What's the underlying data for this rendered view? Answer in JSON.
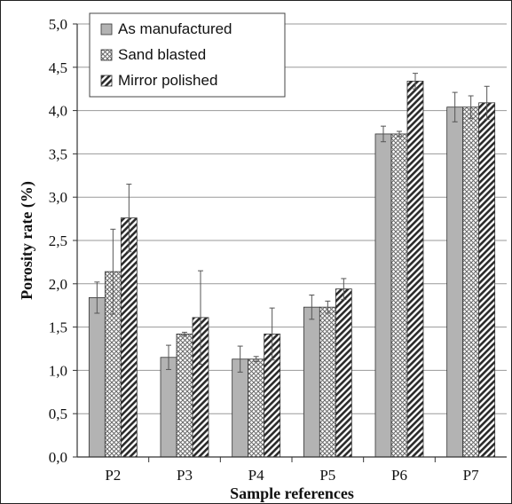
{
  "chart_data": {
    "type": "bar",
    "title": "",
    "xlabel": "Sample references",
    "ylabel": "Porosity rate (%)",
    "categories": [
      "P2",
      "P3",
      "P4",
      "P5",
      "P6",
      "P7"
    ],
    "ylim": [
      0,
      5
    ],
    "ytick_step": 0.5,
    "ytick_labels": [
      "0,0",
      "0,5",
      "1,0",
      "1,5",
      "2,0",
      "2,5",
      "3,0",
      "3,5",
      "4,0",
      "4,5",
      "5,0"
    ],
    "grid": true,
    "legend_position": "top-left",
    "series": [
      {
        "name": "As manufactured",
        "values": [
          1.84,
          1.15,
          1.13,
          1.73,
          3.73,
          4.04
        ],
        "errors": [
          0.18,
          0.14,
          0.15,
          0.14,
          0.09,
          0.17
        ],
        "pattern": "solid",
        "color": "#b3b3b3"
      },
      {
        "name": "Sand blasted",
        "values": [
          2.14,
          1.42,
          1.13,
          1.73,
          3.73,
          4.04
        ],
        "errors": [
          0.49,
          0.02,
          0.03,
          0.07,
          0.03,
          0.13
        ],
        "pattern": "crosshatch",
        "color": "#7f7f7f"
      },
      {
        "name": "Mirror polished",
        "values": [
          2.76,
          1.61,
          1.42,
          1.94,
          4.34,
          4.09
        ],
        "errors": [
          0.39,
          0.54,
          0.3,
          0.12,
          0.09,
          0.19
        ],
        "pattern": "diagonal",
        "color": "#333333"
      }
    ]
  }
}
